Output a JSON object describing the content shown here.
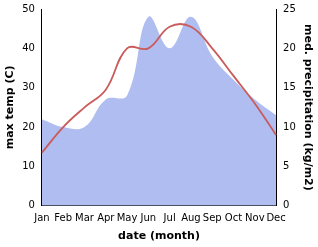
{
  "chart_data": {
    "type": "line",
    "x_label": "date (month)",
    "y_label": "max temp (C)",
    "y2_label": "med. precipitation (kg/m2)",
    "categories": [
      "Jan",
      "Feb",
      "Mar",
      "Apr",
      "May",
      "Jun",
      "Jul",
      "Aug",
      "Sep",
      "Oct",
      "Nov",
      "Dec"
    ],
    "series": [
      {
        "name": "max temp",
        "type": "line",
        "color": "#c95b5b",
        "values": [
          13.5,
          20,
          25,
          29.5,
          40,
          40,
          45.5,
          45.5,
          40,
          33,
          26,
          18
        ]
      },
      {
        "name": "med. precipitation",
        "type": "area",
        "axis": "y2",
        "color": "#b0bdf0",
        "values": [
          11,
          10,
          10,
          13.5,
          14,
          24,
          20,
          24,
          19,
          16,
          13.5,
          11.5
        ]
      }
    ],
    "ylim": [
      0,
      50
    ],
    "yticks": [
      0,
      10,
      20,
      30,
      40,
      50
    ],
    "y2lim": [
      0,
      25
    ],
    "y2ticks": [
      0,
      5,
      10,
      15,
      20,
      25
    ],
    "grid": false
  }
}
